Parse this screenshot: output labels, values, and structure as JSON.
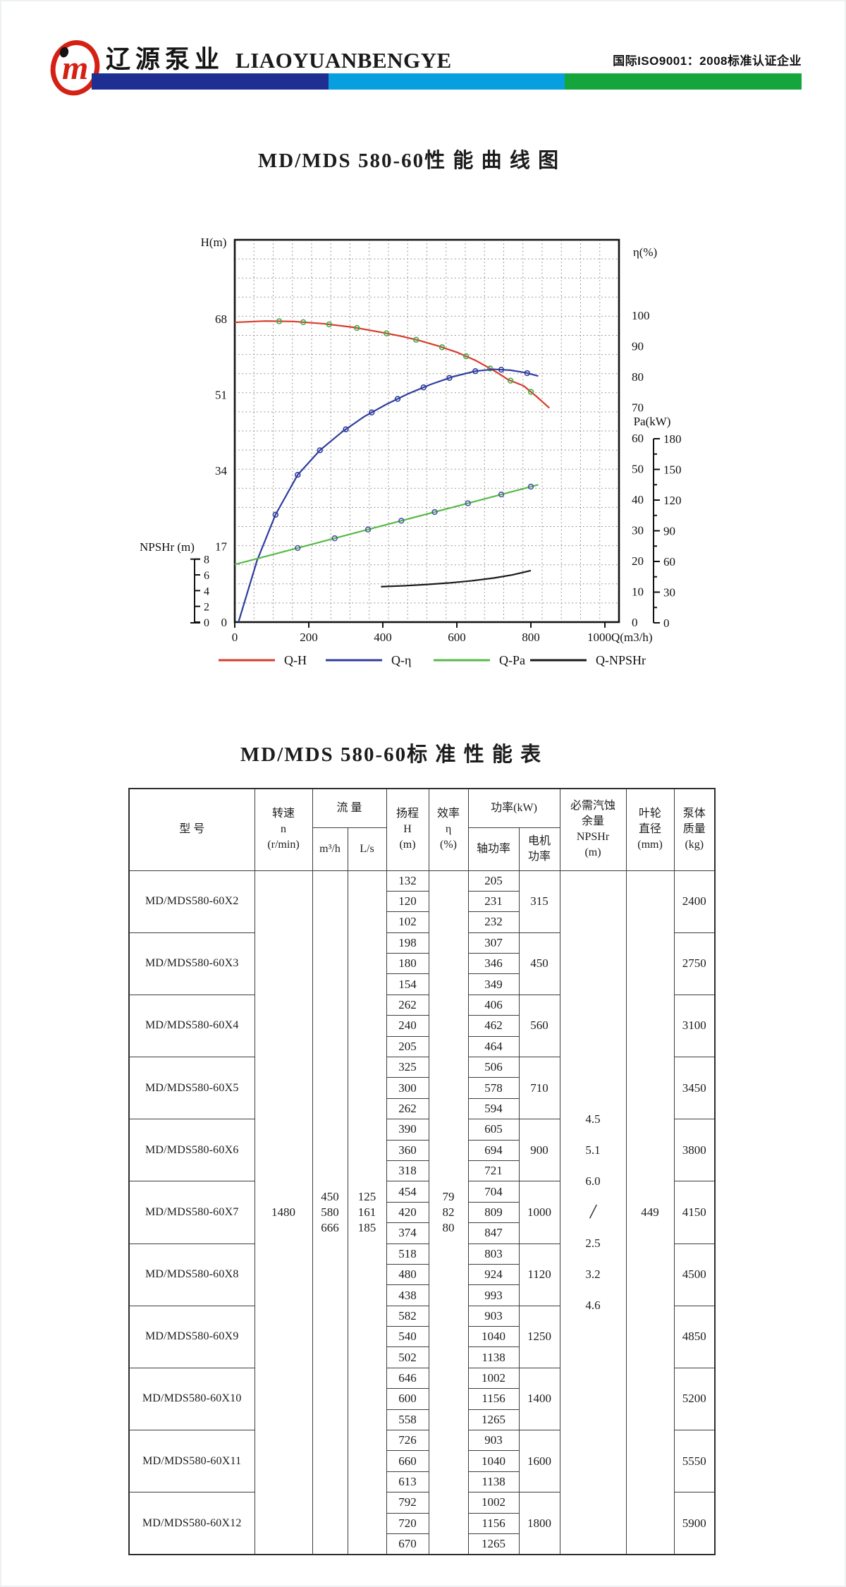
{
  "header": {
    "brand_cn": "辽源泵业",
    "brand_en": "LIAOYUANBENGYE",
    "certification": "国际ISO9001：2008标准认证企业",
    "bar_colors": [
      "#1f2e91",
      "#089fe0",
      "#14a53c"
    ],
    "logo_color": "#d42114"
  },
  "chart": {
    "title": "MD/MDS 580-60性 能 曲 线 图"
  },
  "chart_data": {
    "type": "line",
    "title": "MD/MDS 580-60性 能 曲 线 图",
    "grid": "dotted",
    "legend_position": "bottom",
    "x_axis": {
      "label": "1000Q(m3/h)",
      "range": [
        0,
        1040
      ],
      "ticks": [
        0,
        200,
        400,
        600,
        800
      ]
    },
    "y_axes": {
      "H_m": {
        "label": "H(m)",
        "range": [
          0,
          86
        ],
        "ticks": [
          68,
          51,
          34,
          17,
          0
        ]
      },
      "eta_pct": {
        "label": "η(%)",
        "range": [
          0,
          100
        ],
        "ticks": [
          100,
          90,
          80,
          70,
          60,
          50,
          40,
          30,
          20,
          10,
          0
        ]
      },
      "Pa_kW": {
        "label": "Pa(kW)",
        "range": [
          0,
          180
        ],
        "ticks": [
          180,
          150,
          120,
          90,
          60,
          30,
          0
        ]
      },
      "NPSHr_m": {
        "label": "NPSHr (m)",
        "range": [
          0,
          8
        ],
        "ticks": [
          8,
          6,
          4,
          2,
          0
        ]
      }
    },
    "series": [
      {
        "name": "Q-H",
        "axis": "H_m",
        "color": "#d93a2b",
        "marker_color": "#3fae49",
        "points": [
          [
            0,
            67.2
          ],
          [
            80,
            67.5
          ],
          [
            160,
            67.4
          ],
          [
            240,
            66.9
          ],
          [
            320,
            66.1
          ],
          [
            400,
            64.9
          ],
          [
            450,
            64.1
          ],
          [
            500,
            63.1
          ],
          [
            550,
            61.9
          ],
          [
            600,
            60.5
          ],
          [
            650,
            58.7
          ],
          [
            700,
            56.4
          ],
          [
            740,
            54.3
          ],
          [
            780,
            53.0
          ],
          [
            815,
            50.6
          ],
          [
            850,
            48.0
          ]
        ],
        "marker_q": [
          120,
          185,
          255,
          330,
          410,
          490,
          560,
          625,
          690,
          745,
          800
        ]
      },
      {
        "name": "Q-η",
        "axis": "eta_pct",
        "color": "#2f3e9e",
        "marker_color": "#2f3e9e",
        "points": [
          [
            10,
            0
          ],
          [
            60,
            20
          ],
          [
            110,
            35
          ],
          [
            170,
            48
          ],
          [
            230,
            56
          ],
          [
            290,
            62
          ],
          [
            350,
            67
          ],
          [
            410,
            71
          ],
          [
            470,
            74.5
          ],
          [
            530,
            77.5
          ],
          [
            590,
            80
          ],
          [
            650,
            81.8
          ],
          [
            700,
            82.4
          ],
          [
            745,
            82.1
          ],
          [
            785,
            81.3
          ],
          [
            820,
            80.2
          ]
        ],
        "marker_q": [
          110,
          170,
          230,
          300,
          370,
          440,
          510,
          580,
          650,
          720,
          790
        ]
      },
      {
        "name": "Q-Pa",
        "axis": "Pa_kW",
        "color": "#57b947",
        "marker_color": "#4a55a8",
        "points": [
          [
            0,
            57
          ],
          [
            200,
            76
          ],
          [
            400,
            95
          ],
          [
            600,
            114
          ],
          [
            820,
            135
          ]
        ],
        "marker_q": [
          170,
          270,
          360,
          450,
          540,
          630,
          720,
          800
        ]
      },
      {
        "name": "Q-NPSHr",
        "axis": "NPSHr_m",
        "color": "#1a1a1a",
        "marker_color": "",
        "points": [
          [
            395,
            4.5
          ],
          [
            460,
            4.62
          ],
          [
            520,
            4.78
          ],
          [
            580,
            4.98
          ],
          [
            640,
            5.25
          ],
          [
            700,
            5.6
          ],
          [
            750,
            6.0
          ],
          [
            800,
            6.55
          ]
        ],
        "marker_q": []
      }
    ]
  },
  "table": {
    "title": "MD/MDS 580-60标 准 性 能 表",
    "header": {
      "model": "型  号",
      "speed": [
        "转速",
        "n",
        "(r/min)"
      ],
      "flow": "流 量",
      "flow_m3h": "m³/h",
      "flow_ls": "L/s",
      "head": [
        "扬程",
        "H",
        "(m)"
      ],
      "efficiency": [
        "效率",
        "η",
        "(%)"
      ],
      "power": "功率(kW)",
      "shaft_power": "轴功率",
      "motor_power": [
        "电机",
        "功率"
      ],
      "npshr": [
        "必需汽蚀",
        "余量",
        "NPSHr",
        "(m)"
      ],
      "impeller": [
        "叶轮",
        "直径",
        "(mm)"
      ],
      "mass": [
        "泵体",
        "质量",
        "(kg)"
      ]
    },
    "shared": {
      "speed": "1480",
      "flow_m3h": [
        "450",
        "580",
        "666"
      ],
      "flow_ls": [
        "125",
        "161",
        "185"
      ],
      "efficiency": [
        "79",
        "82",
        "80"
      ],
      "npshr": [
        "4.5",
        "5.1",
        "6.0",
        "/",
        "2.5",
        "3.2",
        "4.6"
      ],
      "impeller": "449"
    },
    "models": [
      {
        "model": "MD/MDS580-60X2",
        "head": [
          "132",
          "120",
          "102"
        ],
        "shaft": [
          "205",
          "231",
          "232"
        ],
        "motor": "315",
        "mass": "2400"
      },
      {
        "model": "MD/MDS580-60X3",
        "head": [
          "198",
          "180",
          "154"
        ],
        "shaft": [
          "307",
          "346",
          "349"
        ],
        "motor": "450",
        "mass": "2750"
      },
      {
        "model": "MD/MDS580-60X4",
        "head": [
          "262",
          "240",
          "205"
        ],
        "shaft": [
          "406",
          "462",
          "464"
        ],
        "motor": "560",
        "mass": "3100"
      },
      {
        "model": "MD/MDS580-60X5",
        "head": [
          "325",
          "300",
          "262"
        ],
        "shaft": [
          "506",
          "578",
          "594"
        ],
        "motor": "710",
        "mass": "3450"
      },
      {
        "model": "MD/MDS580-60X6",
        "head": [
          "390",
          "360",
          "318"
        ],
        "shaft": [
          "605",
          "694",
          "721"
        ],
        "motor": "900",
        "mass": "3800"
      },
      {
        "model": "MD/MDS580-60X7",
        "head": [
          "454",
          "420",
          "374"
        ],
        "shaft": [
          "704",
          "809",
          "847"
        ],
        "motor": "1000",
        "mass": "4150"
      },
      {
        "model": "MD/MDS580-60X8",
        "head": [
          "518",
          "480",
          "438"
        ],
        "shaft": [
          "803",
          "924",
          "993"
        ],
        "motor": "1120",
        "mass": "4500"
      },
      {
        "model": "MD/MDS580-60X9",
        "head": [
          "582",
          "540",
          "502"
        ],
        "shaft": [
          "903",
          "1040",
          "1138"
        ],
        "motor": "1250",
        "mass": "4850"
      },
      {
        "model": "MD/MDS580-60X10",
        "head": [
          "646",
          "600",
          "558"
        ],
        "shaft": [
          "1002",
          "1156",
          "1265"
        ],
        "motor": "1400",
        "mass": "5200"
      },
      {
        "model": "MD/MDS580-60X11",
        "head": [
          "726",
          "660",
          "613"
        ],
        "shaft": [
          "903",
          "1040",
          "1138"
        ],
        "motor": "1600",
        "mass": "5550"
      },
      {
        "model": "MD/MDS580-60X12",
        "head": [
          "792",
          "720",
          "670"
        ],
        "shaft": [
          "1002",
          "1156",
          "1265"
        ],
        "motor": "1800",
        "mass": "5900"
      }
    ]
  }
}
